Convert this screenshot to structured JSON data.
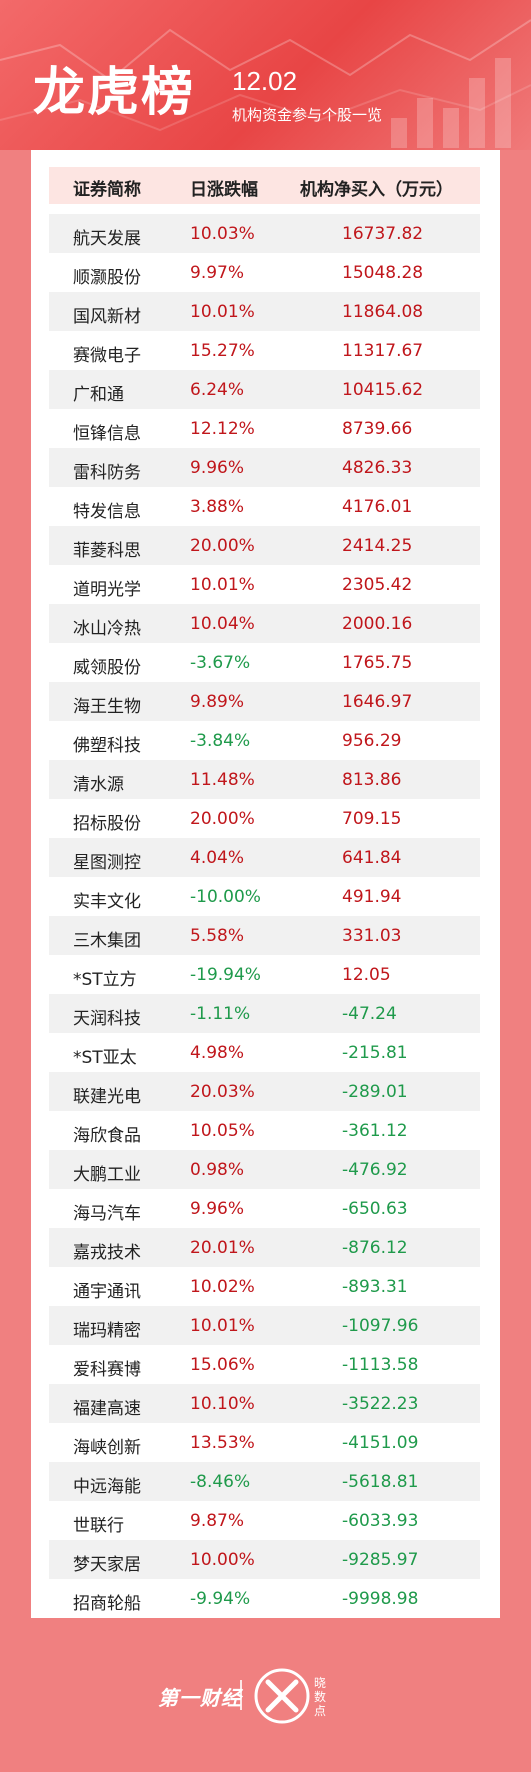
{
  "header": {
    "title": "龙虎榜",
    "date": "12.02",
    "subtitle": "机构资金参与个股一览"
  },
  "table": {
    "columns": [
      "证券简称",
      "日涨跌幅",
      "机构净买入（万元）"
    ],
    "rows": [
      {
        "name": "航天发展",
        "change": "10.03%",
        "net": "16737.82",
        "change_dir": "up",
        "net_dir": "up"
      },
      {
        "name": "顺灏股份",
        "change": "9.97%",
        "net": "15048.28",
        "change_dir": "up",
        "net_dir": "up"
      },
      {
        "name": "国风新材",
        "change": "10.01%",
        "net": "11864.08",
        "change_dir": "up",
        "net_dir": "up"
      },
      {
        "name": "赛微电子",
        "change": "15.27%",
        "net": "11317.67",
        "change_dir": "up",
        "net_dir": "up"
      },
      {
        "name": "广和通",
        "change": "6.24%",
        "net": "10415.62",
        "change_dir": "up",
        "net_dir": "up"
      },
      {
        "name": "恒锋信息",
        "change": "12.12%",
        "net": "8739.66",
        "change_dir": "up",
        "net_dir": "up"
      },
      {
        "name": "雷科防务",
        "change": "9.96%",
        "net": "4826.33",
        "change_dir": "up",
        "net_dir": "up"
      },
      {
        "name": "特发信息",
        "change": "3.88%",
        "net": "4176.01",
        "change_dir": "up",
        "net_dir": "up"
      },
      {
        "name": "菲菱科思",
        "change": "20.00%",
        "net": "2414.25",
        "change_dir": "up",
        "net_dir": "up"
      },
      {
        "name": "道明光学",
        "change": "10.01%",
        "net": "2305.42",
        "change_dir": "up",
        "net_dir": "up"
      },
      {
        "name": "冰山冷热",
        "change": "10.04%",
        "net": "2000.16",
        "change_dir": "up",
        "net_dir": "up"
      },
      {
        "name": "威领股份",
        "change": "-3.67%",
        "net": "1765.75",
        "change_dir": "down",
        "net_dir": "up"
      },
      {
        "name": "海王生物",
        "change": "9.89%",
        "net": "1646.97",
        "change_dir": "up",
        "net_dir": "up"
      },
      {
        "name": "佛塑科技",
        "change": "-3.84%",
        "net": "956.29",
        "change_dir": "down",
        "net_dir": "up"
      },
      {
        "name": "清水源",
        "change": "11.48%",
        "net": "813.86",
        "change_dir": "up",
        "net_dir": "up"
      },
      {
        "name": "招标股份",
        "change": "20.00%",
        "net": "709.15",
        "change_dir": "up",
        "net_dir": "up"
      },
      {
        "name": "星图测控",
        "change": "4.04%",
        "net": "641.84",
        "change_dir": "up",
        "net_dir": "up"
      },
      {
        "name": "实丰文化",
        "change": "-10.00%",
        "net": "491.94",
        "change_dir": "down",
        "net_dir": "up"
      },
      {
        "name": "三木集团",
        "change": "5.58%",
        "net": "331.03",
        "change_dir": "up",
        "net_dir": "up"
      },
      {
        "name": "*ST立方",
        "change": "-19.94%",
        "net": "12.05",
        "change_dir": "down",
        "net_dir": "up"
      },
      {
        "name": "天润科技",
        "change": "-1.11%",
        "net": "-47.24",
        "change_dir": "down",
        "net_dir": "down"
      },
      {
        "name": "*ST亚太",
        "change": "4.98%",
        "net": "-215.81",
        "change_dir": "up",
        "net_dir": "down"
      },
      {
        "name": "联建光电",
        "change": "20.03%",
        "net": "-289.01",
        "change_dir": "up",
        "net_dir": "down"
      },
      {
        "name": "海欣食品",
        "change": "10.05%",
        "net": "-361.12",
        "change_dir": "up",
        "net_dir": "down"
      },
      {
        "name": "大鹏工业",
        "change": "0.98%",
        "net": "-476.92",
        "change_dir": "up",
        "net_dir": "down"
      },
      {
        "name": "海马汽车",
        "change": "9.96%",
        "net": "-650.63",
        "change_dir": "up",
        "net_dir": "down"
      },
      {
        "name": "嘉戎技术",
        "change": "20.01%",
        "net": "-876.12",
        "change_dir": "up",
        "net_dir": "down"
      },
      {
        "name": "通宇通讯",
        "change": "10.02%",
        "net": "-893.31",
        "change_dir": "up",
        "net_dir": "down"
      },
      {
        "name": "瑞玛精密",
        "change": "10.01%",
        "net": "-1097.96",
        "change_dir": "up",
        "net_dir": "down"
      },
      {
        "name": "爱科赛博",
        "change": "15.06%",
        "net": "-1113.58",
        "change_dir": "up",
        "net_dir": "down"
      },
      {
        "name": "福建高速",
        "change": "10.10%",
        "net": "-3522.23",
        "change_dir": "up",
        "net_dir": "down"
      },
      {
        "name": "海峡创新",
        "change": "13.53%",
        "net": "-4151.09",
        "change_dir": "up",
        "net_dir": "down"
      },
      {
        "name": "中远海能",
        "change": "-8.46%",
        "net": "-5618.81",
        "change_dir": "down",
        "net_dir": "down"
      },
      {
        "name": "世联行",
        "change": "9.87%",
        "net": "-6033.93",
        "change_dir": "up",
        "net_dir": "down"
      },
      {
        "name": "梦天家居",
        "change": "10.00%",
        "net": "-9285.97",
        "change_dir": "up",
        "net_dir": "down"
      },
      {
        "name": "招商轮船",
        "change": "-9.94%",
        "net": "-9998.98",
        "change_dir": "down",
        "net_dir": "down"
      }
    ]
  },
  "footer": {
    "logo_left": "第一财经",
    "logo_right_text": "晓数点"
  },
  "colors": {
    "background": "#f08080",
    "header": "#e84545",
    "up": "#c0161b",
    "down": "#1f9a4b",
    "table_header_bg": "#fde5e2",
    "row_stripe": "#f1f1f1"
  }
}
